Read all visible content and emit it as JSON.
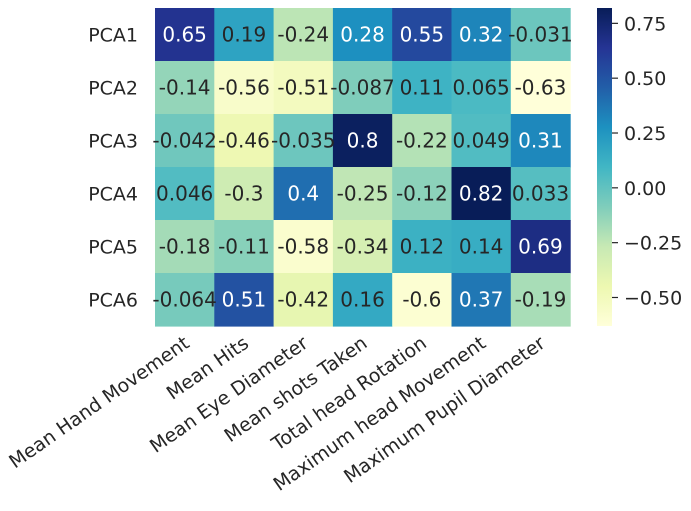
{
  "chart_data": {
    "type": "heatmap",
    "title": "",
    "xlabel": "",
    "ylabel": "",
    "rows": [
      "PCA1",
      "PCA2",
      "PCA3",
      "PCA4",
      "PCA5",
      "PCA6"
    ],
    "columns": [
      "Mean Hand Movement",
      "Mean Hits",
      "Mean Eye Diameter",
      "Mean shots Taken",
      "Total head Rotation",
      "Maximum head Movement",
      "Maximum Pupil Diameter"
    ],
    "values": [
      [
        0.65,
        0.19,
        -0.24,
        0.28,
        0.55,
        0.32,
        -0.031
      ],
      [
        -0.14,
        -0.56,
        -0.51,
        -0.087,
        0.11,
        0.065,
        -0.63
      ],
      [
        -0.042,
        -0.46,
        -0.035,
        0.8,
        -0.22,
        0.049,
        0.31
      ],
      [
        0.046,
        -0.3,
        0.4,
        -0.25,
        -0.12,
        0.82,
        0.033
      ],
      [
        -0.18,
        -0.11,
        -0.58,
        -0.34,
        0.12,
        0.14,
        0.69
      ],
      [
        -0.064,
        0.51,
        -0.42,
        0.16,
        -0.6,
        0.37,
        -0.19
      ]
    ],
    "colormap": "YlGnBu",
    "vmin": -0.63,
    "vmax": 0.82,
    "colorbar_ticks": [
      "0.75",
      "0.50",
      "0.25",
      "0.00",
      "−0.25",
      "−0.50"
    ],
    "colorbar_tick_values": [
      0.75,
      0.5,
      0.25,
      0.0,
      -0.25,
      -0.5
    ],
    "annotated": true
  }
}
